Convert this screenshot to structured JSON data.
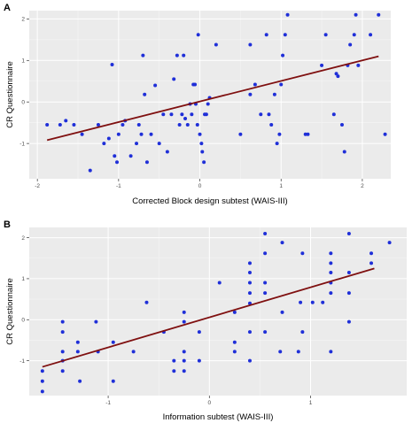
{
  "chart_data": [
    {
      "type": "scatter",
      "panel_label": "A",
      "xlabel": "Corrected Block design subtest (WAIS-III)",
      "ylabel": "CR Questionnaire",
      "xlim": [
        -2.1,
        2.35
      ],
      "ylim": [
        -1.85,
        2.2
      ],
      "x_ticks": [
        -2,
        -1,
        0,
        1,
        2
      ],
      "x_tick_labels": [
        "-2",
        "-1",
        "0",
        "1",
        "2"
      ],
      "y_ticks": [
        -1,
        0,
        1,
        2
      ],
      "y_tick_labels": [
        "-1",
        "0",
        "1",
        "2"
      ],
      "grid": true,
      "point_color": "#1f2fd8",
      "line_color": "#7f1010",
      "trend_line": {
        "x": [
          -1.88,
          2.2
        ],
        "y": [
          -0.92,
          1.1
        ]
      },
      "points": [
        {
          "x": -1.88,
          "y": -0.55
        },
        {
          "x": -1.72,
          "y": -0.55
        },
        {
          "x": -1.65,
          "y": -0.45
        },
        {
          "x": -1.55,
          "y": -0.55
        },
        {
          "x": -1.45,
          "y": -0.78
        },
        {
          "x": -1.35,
          "y": -1.65
        },
        {
          "x": -1.25,
          "y": -0.55
        },
        {
          "x": -1.18,
          "y": -1.0
        },
        {
          "x": -1.12,
          "y": -0.88
        },
        {
          "x": -1.08,
          "y": 0.9
        },
        {
          "x": -1.05,
          "y": -1.3
        },
        {
          "x": -1.02,
          "y": -1.45
        },
        {
          "x": -1.0,
          "y": -0.78
        },
        {
          "x": -0.95,
          "y": -0.55
        },
        {
          "x": -0.92,
          "y": -0.45
        },
        {
          "x": -0.85,
          "y": -1.3
        },
        {
          "x": -0.78,
          "y": -1.0
        },
        {
          "x": -0.75,
          "y": -0.55
        },
        {
          "x": -0.72,
          "y": -0.78
        },
        {
          "x": -0.7,
          "y": 1.12
        },
        {
          "x": -0.68,
          "y": 0.18
        },
        {
          "x": -0.65,
          "y": -1.45
        },
        {
          "x": -0.6,
          "y": -0.78
        },
        {
          "x": -0.55,
          "y": 0.4
        },
        {
          "x": -0.5,
          "y": -1.0
        },
        {
          "x": -0.45,
          "y": -0.3
        },
        {
          "x": -0.4,
          "y": -1.2
        },
        {
          "x": -0.35,
          "y": -0.3
        },
        {
          "x": -0.32,
          "y": 0.55
        },
        {
          "x": -0.28,
          "y": 1.12
        },
        {
          "x": -0.25,
          "y": -0.55
        },
        {
          "x": -0.22,
          "y": -0.3
        },
        {
          "x": -0.2,
          "y": 1.12
        },
        {
          "x": -0.18,
          "y": -0.4
        },
        {
          "x": -0.15,
          "y": -0.55
        },
        {
          "x": -0.12,
          "y": -0.05
        },
        {
          "x": -0.1,
          "y": -0.3
        },
        {
          "x": -0.08,
          "y": 0.42
        },
        {
          "x": -0.06,
          "y": 0.42
        },
        {
          "x": -0.05,
          "y": -0.05
        },
        {
          "x": -0.03,
          "y": -0.55
        },
        {
          "x": -0.02,
          "y": 1.62
        },
        {
          "x": 0.0,
          "y": -0.78
        },
        {
          "x": 0.02,
          "y": -1.0
        },
        {
          "x": 0.03,
          "y": -1.2
        },
        {
          "x": 0.05,
          "y": -1.45
        },
        {
          "x": 0.06,
          "y": -0.3
        },
        {
          "x": 0.08,
          "y": -0.3
        },
        {
          "x": 0.1,
          "y": -0.05
        },
        {
          "x": 0.12,
          "y": 0.1
        },
        {
          "x": 0.2,
          "y": 1.38
        },
        {
          "x": 0.5,
          "y": -0.78
        },
        {
          "x": 0.62,
          "y": 0.18
        },
        {
          "x": 0.62,
          "y": 1.38
        },
        {
          "x": 0.68,
          "y": 0.42
        },
        {
          "x": 0.75,
          "y": -0.3
        },
        {
          "x": 0.82,
          "y": 1.62
        },
        {
          "x": 0.85,
          "y": -0.3
        },
        {
          "x": 0.88,
          "y": -0.55
        },
        {
          "x": 0.92,
          "y": 0.18
        },
        {
          "x": 0.95,
          "y": -1.0
        },
        {
          "x": 0.98,
          "y": -0.78
        },
        {
          "x": 1.0,
          "y": 0.42
        },
        {
          "x": 1.02,
          "y": 1.12
        },
        {
          "x": 1.05,
          "y": 1.62
        },
        {
          "x": 1.08,
          "y": 2.1
        },
        {
          "x": 1.3,
          "y": -0.78
        },
        {
          "x": 1.33,
          "y": -0.78
        },
        {
          "x": 1.5,
          "y": 0.88
        },
        {
          "x": 1.55,
          "y": 1.62
        },
        {
          "x": 1.65,
          "y": -0.3
        },
        {
          "x": 1.68,
          "y": 0.68
        },
        {
          "x": 1.7,
          "y": 0.62
        },
        {
          "x": 1.75,
          "y": -0.55
        },
        {
          "x": 1.78,
          "y": -1.2
        },
        {
          "x": 1.82,
          "y": 0.88
        },
        {
          "x": 1.85,
          "y": 1.38
        },
        {
          "x": 1.9,
          "y": 1.62
        },
        {
          "x": 1.92,
          "y": 2.1
        },
        {
          "x": 1.95,
          "y": 0.88
        },
        {
          "x": 2.1,
          "y": 1.62
        },
        {
          "x": 2.2,
          "y": 2.1
        },
        {
          "x": 2.28,
          "y": -0.78
        }
      ]
    },
    {
      "type": "scatter",
      "panel_label": "B",
      "xlabel": "Information subtest (WAIS-III)",
      "ylabel": "CR Questionnaire",
      "xlim": [
        -1.78,
        1.95
      ],
      "ylim": [
        -1.85,
        2.25
      ],
      "x_ticks": [
        -1,
        0,
        1
      ],
      "x_tick_labels": [
        "-1",
        "0",
        "1"
      ],
      "y_ticks": [
        -1,
        0,
        1,
        2
      ],
      "y_tick_labels": [
        "-1",
        "0",
        "1",
        "2"
      ],
      "grid": true,
      "point_color": "#1f2fd8",
      "line_color": "#7f1010",
      "trend_line": {
        "x": [
          -1.65,
          1.63
        ],
        "y": [
          -1.15,
          1.25
        ]
      },
      "points": [
        {
          "x": -1.65,
          "y": -1.25
        },
        {
          "x": -1.65,
          "y": -1.5
        },
        {
          "x": -1.65,
          "y": -1.75
        },
        {
          "x": -1.45,
          "y": -0.05
        },
        {
          "x": -1.45,
          "y": -0.3
        },
        {
          "x": -1.45,
          "y": -0.78
        },
        {
          "x": -1.45,
          "y": -1.0
        },
        {
          "x": -1.45,
          "y": -1.25
        },
        {
          "x": -1.3,
          "y": -0.55
        },
        {
          "x": -1.3,
          "y": -0.78
        },
        {
          "x": -1.28,
          "y": -1.5
        },
        {
          "x": -1.12,
          "y": -0.05
        },
        {
          "x": -1.1,
          "y": -0.78
        },
        {
          "x": -0.95,
          "y": -0.55
        },
        {
          "x": -0.95,
          "y": -1.5
        },
        {
          "x": -0.75,
          "y": -0.78
        },
        {
          "x": -0.62,
          "y": 0.42
        },
        {
          "x": -0.45,
          "y": -0.3
        },
        {
          "x": -0.35,
          "y": -1.0
        },
        {
          "x": -0.35,
          "y": -1.25
        },
        {
          "x": -0.25,
          "y": -0.05
        },
        {
          "x": -0.25,
          "y": 0.18
        },
        {
          "x": -0.25,
          "y": -0.78
        },
        {
          "x": -0.25,
          "y": -1.0
        },
        {
          "x": -0.25,
          "y": -1.25
        },
        {
          "x": -0.1,
          "y": -0.3
        },
        {
          "x": -0.1,
          "y": -1.0
        },
        {
          "x": 0.1,
          "y": 0.9
        },
        {
          "x": 0.25,
          "y": 0.18
        },
        {
          "x": 0.25,
          "y": -0.55
        },
        {
          "x": 0.25,
          "y": -0.78
        },
        {
          "x": 0.4,
          "y": 0.4
        },
        {
          "x": 0.4,
          "y": 0.65
        },
        {
          "x": 0.4,
          "y": 0.9
        },
        {
          "x": 0.4,
          "y": 1.15
        },
        {
          "x": 0.4,
          "y": 1.38
        },
        {
          "x": 0.4,
          "y": -0.3
        },
        {
          "x": 0.4,
          "y": -1.0
        },
        {
          "x": 0.55,
          "y": 1.62
        },
        {
          "x": 0.55,
          "y": 2.1
        },
        {
          "x": 0.55,
          "y": 0.9
        },
        {
          "x": 0.55,
          "y": 0.65
        },
        {
          "x": 0.55,
          "y": -0.3
        },
        {
          "x": 0.7,
          "y": -0.78
        },
        {
          "x": 0.72,
          "y": 0.18
        },
        {
          "x": 0.72,
          "y": 1.88
        },
        {
          "x": 0.88,
          "y": -0.78
        },
        {
          "x": 0.9,
          "y": 0.42
        },
        {
          "x": 0.92,
          "y": 1.62
        },
        {
          "x": 0.92,
          "y": -0.3
        },
        {
          "x": 1.02,
          "y": 0.42
        },
        {
          "x": 1.12,
          "y": 0.42
        },
        {
          "x": 1.2,
          "y": 1.62
        },
        {
          "x": 1.2,
          "y": 1.38
        },
        {
          "x": 1.2,
          "y": 1.15
        },
        {
          "x": 1.2,
          "y": 0.9
        },
        {
          "x": 1.2,
          "y": 0.65
        },
        {
          "x": 1.2,
          "y": -0.78
        },
        {
          "x": 1.38,
          "y": 2.1
        },
        {
          "x": 1.38,
          "y": 1.15
        },
        {
          "x": 1.38,
          "y": -0.05
        },
        {
          "x": 1.38,
          "y": 0.65
        },
        {
          "x": 1.6,
          "y": 1.62
        },
        {
          "x": 1.6,
          "y": 1.38
        },
        {
          "x": 1.78,
          "y": 1.88
        }
      ]
    }
  ]
}
